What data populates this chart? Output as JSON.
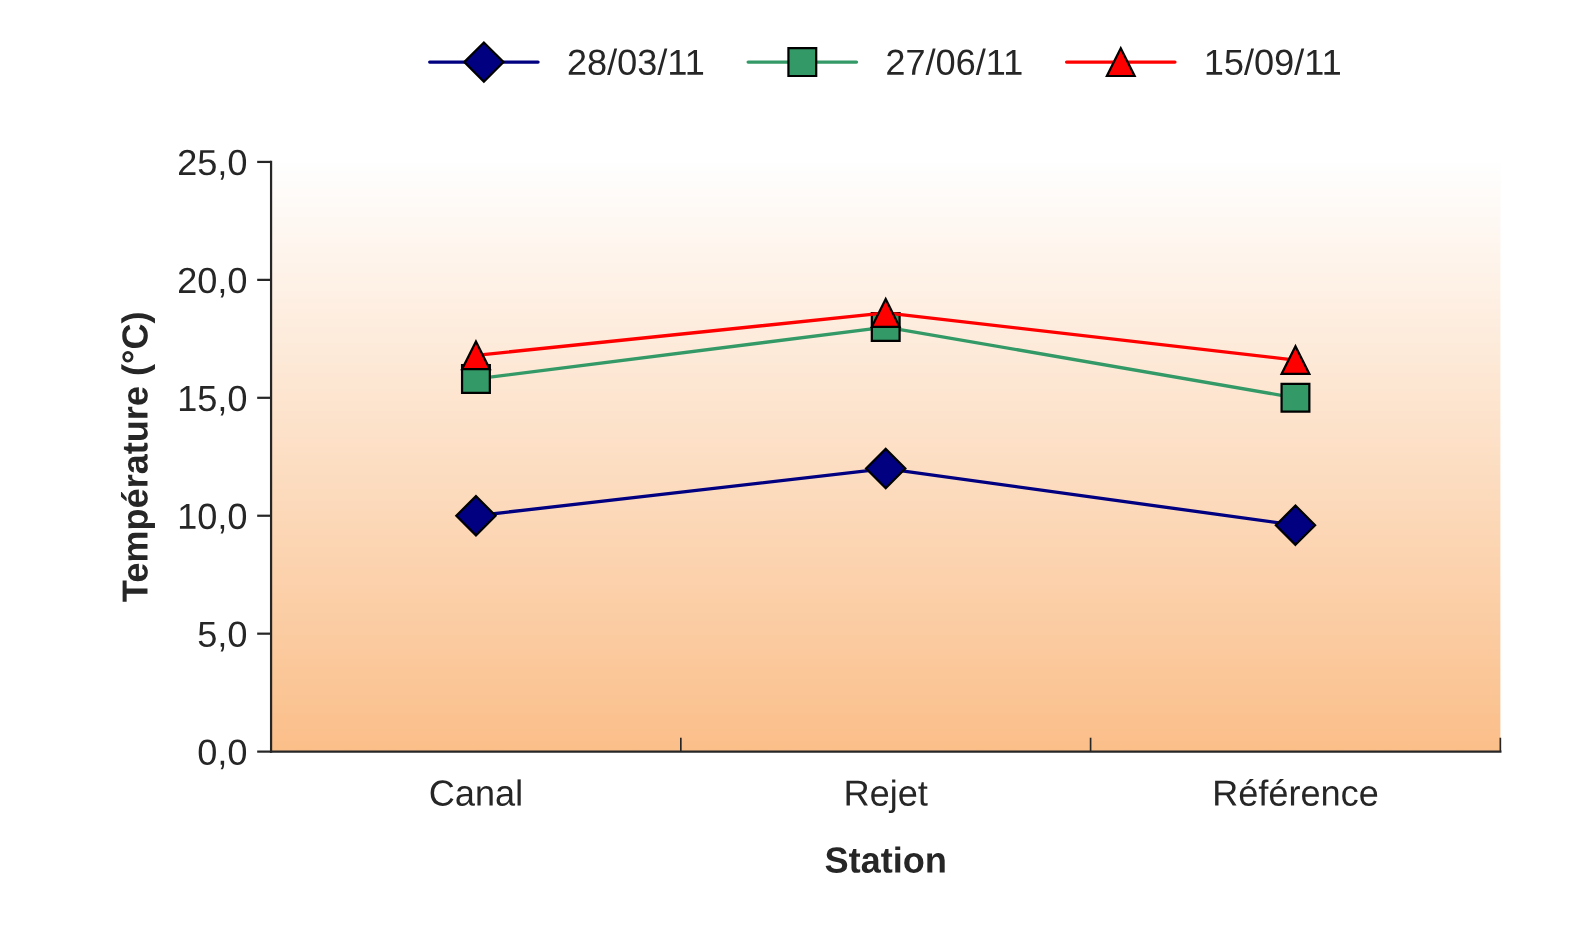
{
  "chart_data": {
    "type": "line",
    "xlabel": "Station",
    "ylabel": "Température (°C)",
    "categories": [
      "Canal",
      "Rejet",
      "Référence"
    ],
    "series": [
      {
        "name": "28/03/11",
        "color": "#000080",
        "marker": "diamond",
        "values": [
          10.0,
          12.0,
          9.6
        ]
      },
      {
        "name": "27/06/11",
        "color": "#339966",
        "marker": "square",
        "values": [
          15.8,
          18.0,
          15.0
        ]
      },
      {
        "name": "15/09/11",
        "color": "#ff0000",
        "marker": "triangle",
        "values": [
          16.8,
          18.6,
          16.6
        ]
      }
    ],
    "ylim": [
      0,
      25
    ],
    "yticks": [
      {
        "value": 0,
        "label": "0,0"
      },
      {
        "value": 5,
        "label": "5,0"
      },
      {
        "value": 10,
        "label": "10,0"
      },
      {
        "value": 15,
        "label": "15,0"
      },
      {
        "value": 20,
        "label": "20,0"
      },
      {
        "value": 25,
        "label": "25,0"
      }
    ],
    "grid": false,
    "legend": "top"
  }
}
